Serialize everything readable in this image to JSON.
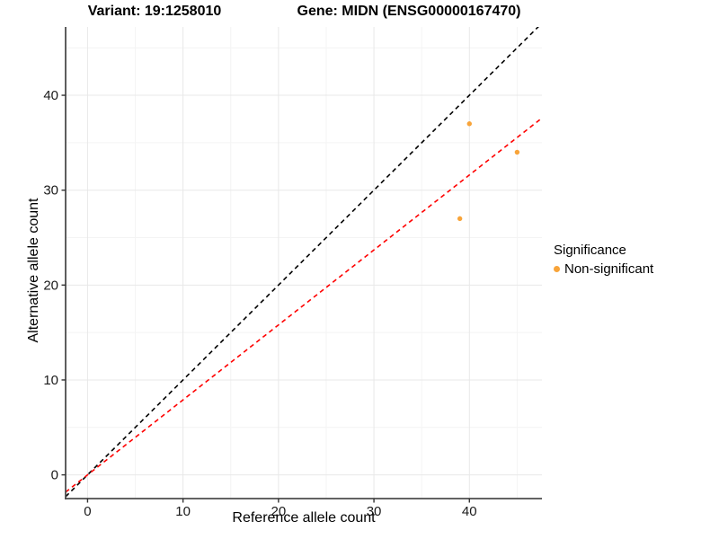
{
  "titles": {
    "variant": "Variant: 19:1258010",
    "gene": "Gene: MIDN (ENSG00000167470)"
  },
  "legend": {
    "title": "Significance",
    "items": [
      {
        "label": "Non-significant",
        "color": "#F8A43A"
      }
    ]
  },
  "chart_data": {
    "type": "scatter",
    "title_left": "Variant: 19:1258010",
    "title_right": "Gene: MIDN (ENSG00000167470)",
    "xlabel": "Reference allele count",
    "ylabel": "Alternative allele count",
    "xlim": [
      -2.3,
      47.6
    ],
    "ylim": [
      -2.5,
      47.2
    ],
    "xticks": [
      0,
      10,
      20,
      30,
      40
    ],
    "yticks": [
      0,
      10,
      20,
      30,
      40
    ],
    "xminor": [
      5,
      15,
      25,
      35,
      45
    ],
    "yminor": [
      5,
      15,
      25,
      35,
      45
    ],
    "grid": "on",
    "legend_position": "right",
    "series": [
      {
        "name": "Non-significant",
        "color": "#F8A43A",
        "points": [
          {
            "x": 40,
            "y": 37
          },
          {
            "x": 45,
            "y": 34
          },
          {
            "x": 39,
            "y": 27
          }
        ]
      }
    ],
    "lines": [
      {
        "name": "identity-line",
        "slope": 1.0,
        "intercept": 0,
        "color": "#000000",
        "dash": "5,4"
      },
      {
        "name": "fit-line",
        "slope": 0.79,
        "intercept": 0,
        "color": "#FF0000",
        "dash": "5,4"
      }
    ],
    "colors": {
      "point": "#F8A43A",
      "grid_major": "#E8E8E8",
      "grid_minor": "#F4F4F4",
      "axis_line": "#4D4D4D",
      "tick_text": "#1A1A1A"
    }
  }
}
